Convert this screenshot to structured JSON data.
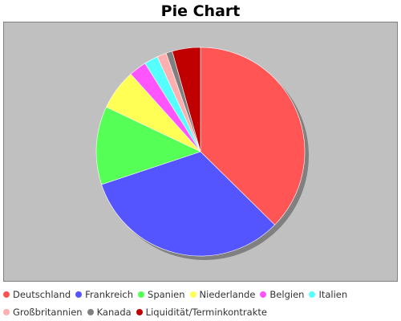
{
  "chart_data": {
    "type": "pie",
    "title": "Pie Chart",
    "legend_position": "bottom",
    "slices": [
      {
        "label": "Deutschland",
        "value": 38.5,
        "color": "#ff5555"
      },
      {
        "label": "Frankreich",
        "value": 33.5,
        "color": "#5555ff"
      },
      {
        "label": "Spanien",
        "value": 12.5,
        "color": "#55ff55"
      },
      {
        "label": "Niederlande",
        "value": 6.5,
        "color": "#ffff55"
      },
      {
        "label": "Belgien",
        "value": 2.8,
        "color": "#ff55ff"
      },
      {
        "label": "Italien",
        "value": 2.2,
        "color": "#55ffff"
      },
      {
        "label": "Großbritannien",
        "value": 1.5,
        "color": "#ffafaf"
      },
      {
        "label": "Kanada",
        "value": 1.0,
        "color": "#808080"
      },
      {
        "label": "Liquidität/Terminkontrakte",
        "value": 4.5,
        "color": "#c00000"
      }
    ]
  }
}
